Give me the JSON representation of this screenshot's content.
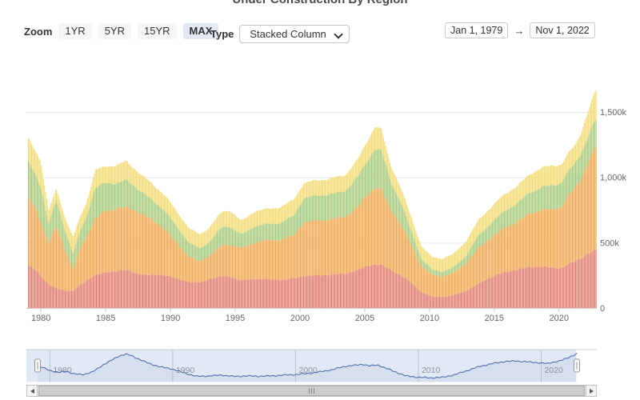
{
  "title": "Under Construction By Region",
  "zoom": {
    "label": "Zoom",
    "buttons": [
      "1YR",
      "5YR",
      "15YR",
      "MAX"
    ],
    "active": "MAX"
  },
  "type_control": {
    "label": "Type",
    "value": "Stacked Column"
  },
  "date_range": {
    "start": "Jan 1, 1979",
    "arrow": "→",
    "end": "Nov 1, 2022"
  },
  "chart_data": {
    "type": "bar",
    "stacking": "normal",
    "title": "Under Construction By Region",
    "unit": "thousands of units",
    "x_start_year": 1979.0,
    "x_end_year": 2022.917,
    "months": 527,
    "xlabel": "",
    "ylabel": "",
    "ylim": [
      0,
      1500
    ],
    "yaxis_ticks": [
      {
        "v": 0,
        "label": "0"
      },
      {
        "v": 500,
        "label": "500k"
      },
      {
        "v": 1000,
        "label": "1,000k"
      },
      {
        "v": 1500,
        "label": "1,500k"
      }
    ],
    "xaxis_ticks": [
      "1980",
      "1985",
      "1990",
      "1995",
      "2000",
      "2005",
      "2010",
      "2015",
      "2020"
    ],
    "sample_years": [
      1979.0,
      1979.5,
      1980.0,
      1980.6,
      1981.2,
      1981.8,
      1982.5,
      1983.0,
      1983.5,
      1984.2,
      1985.0,
      1986.0,
      1986.6,
      1987.5,
      1988.5,
      1989.5,
      1990.5,
      1991.5,
      1992.3,
      1993.0,
      1994.0,
      1994.6,
      1995.5,
      1996.5,
      1997.5,
      1998.5,
      1999.5,
      2000.3,
      2001.5,
      2002.5,
      2003.5,
      2004.5,
      2005.2,
      2005.8,
      2006.3,
      2007.0,
      2007.8,
      2008.6,
      2009.4,
      2010.2,
      2011.0,
      2011.8,
      2012.8,
      2013.8,
      2014.8,
      2015.8,
      2016.8,
      2017.8,
      2018.6,
      2019.5,
      2020.2,
      2020.7,
      2021.3,
      2021.8,
      2022.3,
      2022.87
    ],
    "series": [
      {
        "name": "region-red-bottom",
        "color": "#e07a6b",
        "values": [
          325,
          300,
          245,
          185,
          150,
          135,
          130,
          175,
          205,
          255,
          270,
          288,
          290,
          262,
          252,
          255,
          225,
          198,
          195,
          222,
          243,
          240,
          210,
          222,
          220,
          215,
          225,
          245,
          250,
          255,
          262,
          292,
          320,
          335,
          330,
          290,
          250,
          195,
          120,
          88,
          84,
          95,
          128,
          185,
          240,
          272,
          295,
          315,
          318,
          308,
          305,
          335,
          358,
          385,
          420,
          442
        ]
      },
      {
        "name": "region-orange",
        "color": "#efa64d",
        "values": [
          515,
          480,
          410,
          315,
          475,
          330,
          165,
          270,
          335,
          430,
          470,
          477,
          480,
          478,
          428,
          360,
          270,
          192,
          160,
          178,
          235,
          245,
          250,
          278,
          300,
          305,
          327,
          410,
          420,
          425,
          438,
          482,
          545,
          588,
          575,
          470,
          390,
          290,
          200,
          168,
          158,
          172,
          210,
          275,
          300,
          342,
          365,
          412,
          432,
          448,
          470,
          520,
          565,
          625,
          700,
          795
        ]
      },
      {
        "name": "region-green",
        "color": "#a5c97a",
        "values": [
          280,
          255,
          270,
          140,
          200,
          150,
          120,
          130,
          150,
          235,
          215,
          195,
          205,
          175,
          150,
          140,
          125,
          105,
          100,
          105,
          140,
          140,
          100,
          125,
          122,
          132,
          150,
          185,
          192,
          192,
          196,
          232,
          262,
          298,
          290,
          215,
          165,
          105,
          55,
          38,
          35,
          40,
          58,
          95,
          112,
          128,
          142,
          160,
          172,
          182,
          185,
          185,
          190,
          195,
          200,
          203
        ]
      },
      {
        "name": "region-yellow-top",
        "color": "#f2da6e",
        "values": [
          180,
          175,
          205,
          105,
          85,
          100,
          125,
          110,
          110,
          135,
          125,
          140,
          145,
          130,
          125,
          120,
          115,
          110,
          108,
          110,
          120,
          122,
          105,
          115,
          116,
          120,
          124,
          115,
          118,
          120,
          122,
          132,
          152,
          170,
          165,
          125,
          115,
          105,
          95,
          98,
          100,
          103,
          110,
          118,
          123,
          128,
          133,
          141,
          148,
          152,
          140,
          135,
          142,
          165,
          195,
          225
        ]
      }
    ]
  },
  "navigator": {
    "xaxis_labels": [
      "1980",
      "1990",
      "2000",
      "2010",
      "2020"
    ],
    "line_color": "#4d6fae",
    "selection_color": "#e2e9f6",
    "samples": [
      {
        "x": 1979,
        "v": 0.52
      },
      {
        "x": 1980,
        "v": 0.36
      },
      {
        "x": 1980.7,
        "v": 0.27
      },
      {
        "x": 1981.3,
        "v": 0.33
      },
      {
        "x": 1982,
        "v": 0.22
      },
      {
        "x": 1982.7,
        "v": 0.2
      },
      {
        "x": 1983.5,
        "v": 0.3
      },
      {
        "x": 1984.3,
        "v": 0.55
      },
      {
        "x": 1985,
        "v": 0.72
      },
      {
        "x": 1985.6,
        "v": 0.88
      },
      {
        "x": 1986.2,
        "v": 0.95
      },
      {
        "x": 1986.6,
        "v": 0.9
      },
      {
        "x": 1987,
        "v": 0.82
      },
      {
        "x": 1988,
        "v": 0.62
      },
      {
        "x": 1989,
        "v": 0.48
      },
      {
        "x": 1990,
        "v": 0.4
      },
      {
        "x": 1991,
        "v": 0.25
      },
      {
        "x": 1992,
        "v": 0.13
      },
      {
        "x": 1993,
        "v": 0.15
      },
      {
        "x": 1994,
        "v": 0.18
      },
      {
        "x": 1995,
        "v": 0.13
      },
      {
        "x": 1996,
        "v": 0.15
      },
      {
        "x": 1997,
        "v": 0.14
      },
      {
        "x": 1998,
        "v": 0.15
      },
      {
        "x": 1999,
        "v": 0.18
      },
      {
        "x": 2000,
        "v": 0.2
      },
      {
        "x": 2001,
        "v": 0.24
      },
      {
        "x": 2002,
        "v": 0.3
      },
      {
        "x": 2003,
        "v": 0.38
      },
      {
        "x": 2004,
        "v": 0.5
      },
      {
        "x": 2005,
        "v": 0.55
      },
      {
        "x": 2005.5,
        "v": 0.58
      },
      {
        "x": 2006,
        "v": 0.52
      },
      {
        "x": 2006.7,
        "v": 0.55
      },
      {
        "x": 2007,
        "v": 0.5
      },
      {
        "x": 2008,
        "v": 0.32
      },
      {
        "x": 2009,
        "v": 0.15
      },
      {
        "x": 2010,
        "v": 0.1
      },
      {
        "x": 2011,
        "v": 0.08
      },
      {
        "x": 2012,
        "v": 0.1
      },
      {
        "x": 2013,
        "v": 0.2
      },
      {
        "x": 2014,
        "v": 0.35
      },
      {
        "x": 2015,
        "v": 0.5
      },
      {
        "x": 2016,
        "v": 0.6
      },
      {
        "x": 2017,
        "v": 0.68
      },
      {
        "x": 2018,
        "v": 0.7
      },
      {
        "x": 2019,
        "v": 0.66
      },
      {
        "x": 2020,
        "v": 0.63
      },
      {
        "x": 2020.5,
        "v": 0.6
      },
      {
        "x": 2021,
        "v": 0.66
      },
      {
        "x": 2021.5,
        "v": 0.7
      },
      {
        "x": 2022,
        "v": 0.78
      },
      {
        "x": 2022.9,
        "v": 0.97
      }
    ]
  },
  "colors": {
    "grid": "#e7e7e7",
    "axis_line": "#cccccc",
    "axis_label": "#666666",
    "nav_gridline": "#b7c0d4",
    "nav_label": "#8b91a0"
  }
}
